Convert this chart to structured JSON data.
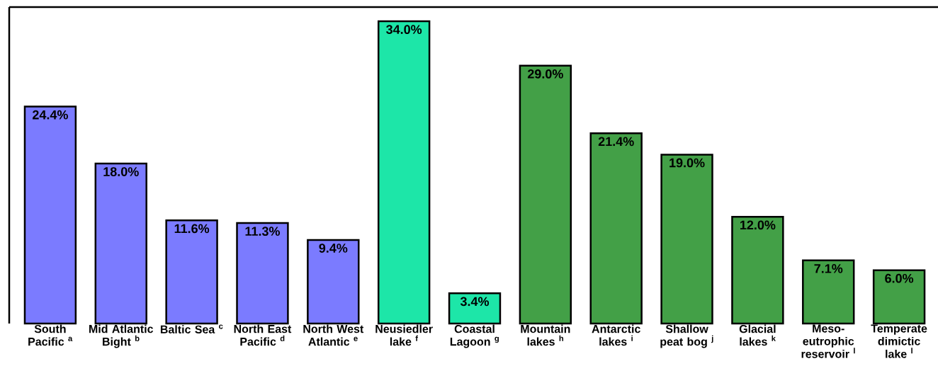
{
  "chart_data": {
    "type": "bar",
    "categories": [
      "South Pacific $^{a}$",
      "Mid Atlantic Bight $^{b}$",
      "Baltic Sea $^{c}$",
      "North East Pacific $^{d}$",
      "North West Atlantic $^{e}$",
      "Neusiedler lake $^{f}$",
      "Coastal Lagoon $^{g}$",
      "Mountain lakes $^{h}$",
      "Antarctic lakes $^{i}$",
      "Shallow peat bog $^{j}$",
      "Glacial lakes $^{k}$",
      "Meso-eutrophic reservoir $^{l}$",
      "Temperate dimictic lake $^{l}$"
    ],
    "values": [
      24.4,
      18.0,
      11.6,
      11.3,
      9.4,
      34.0,
      3.4,
      29.0,
      21.4,
      19.0,
      12.0,
      7.1,
      6.0
    ],
    "value_labels": [
      "24.4%",
      "18.0%",
      "11.6%",
      "11.3%",
      "9.4%",
      "34.0%",
      "3.4%",
      "29.0%",
      "21.4%",
      "19.0%",
      "12.0%",
      "7.1%",
      "6.0%"
    ],
    "colors": [
      "#7b7bff",
      "#7b7bff",
      "#7b7bff",
      "#7b7bff",
      "#7b7bff",
      "#1de6a8",
      "#1de6a8",
      "#43a047",
      "#43a047",
      "#43a047",
      "#43a047",
      "#43a047",
      "#43a047"
    ]
  }
}
